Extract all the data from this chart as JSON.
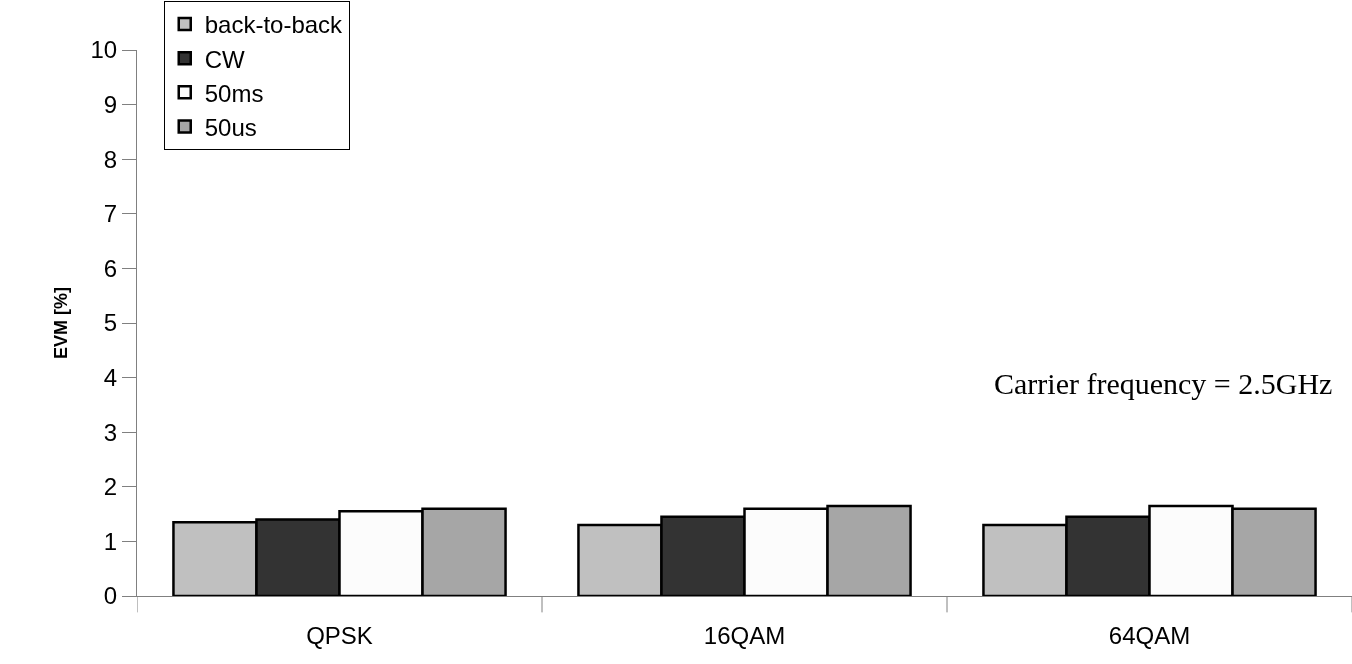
{
  "chart_data": {
    "type": "bar",
    "ylabel": "EVM [%]",
    "categories": [
      "QPSK",
      "16QAM",
      "64QAM"
    ],
    "series": [
      {
        "name": "back-to-back",
        "color": "#c0c0c0",
        "values": [
          1.35,
          1.3,
          1.3
        ]
      },
      {
        "name": "CW",
        "color": "#333333",
        "values": [
          1.4,
          1.45,
          1.45
        ]
      },
      {
        "name": "50ms",
        "color": "#fcfcfc",
        "values": [
          1.55,
          1.6,
          1.65
        ]
      },
      {
        "name": "50us",
        "color": "#a6a6a6",
        "values": [
          1.6,
          1.65,
          1.6
        ]
      }
    ],
    "ylim": [
      0,
      10
    ],
    "yticks": [
      0,
      1,
      2,
      3,
      4,
      5,
      6,
      7,
      8,
      9,
      10
    ],
    "annotations": [
      "Carrier frequency = 2.5GHz"
    ],
    "legend": "top left"
  }
}
